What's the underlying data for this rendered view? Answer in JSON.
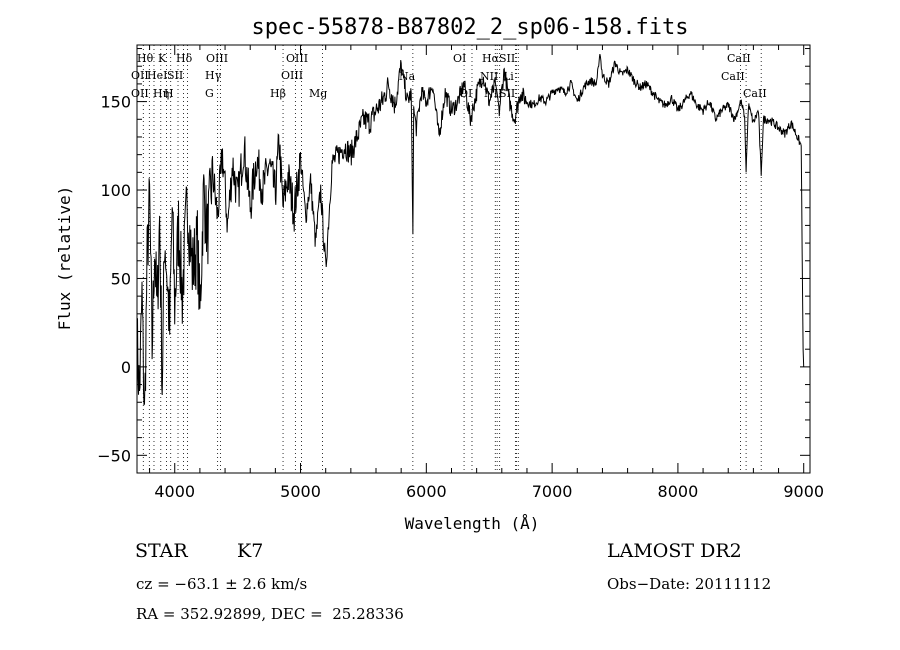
{
  "chart_data": {
    "type": "line",
    "title": "spec-55878-B87802_2_sp06-158.fits",
    "xlabel": "Wavelength (Å)",
    "ylabel": "Flux (relative)",
    "xlim": [
      3700,
      9050
    ],
    "ylim": [
      -60,
      182
    ],
    "xticks": [
      4000,
      5000,
      6000,
      7000,
      8000,
      9000
    ],
    "yticks": [
      -50,
      0,
      50,
      100,
      150
    ],
    "grid": false,
    "series": [
      {
        "color": "#000000",
        "x": [
          3700,
          3720,
          3740,
          3760,
          3780,
          3800,
          3820,
          3840,
          3860,
          3880,
          3900,
          3920,
          3940,
          3960,
          3980,
          4000,
          4030,
          4060,
          4100,
          4140,
          4180,
          4200,
          4230,
          4260,
          4300,
          4340,
          4380,
          4420,
          4460,
          4500,
          4550,
          4600,
          4650,
          4700,
          4750,
          4800,
          4830,
          4860,
          4900,
          4950,
          5000,
          5040,
          5080,
          5120,
          5160,
          5200,
          5250,
          5300,
          5350,
          5400,
          5450,
          5500,
          5550,
          5600,
          5650,
          5700,
          5750,
          5800,
          5850,
          5880,
          5893,
          5900,
          5920,
          5960,
          6000,
          6050,
          6100,
          6150,
          6200,
          6250,
          6300,
          6350,
          6400,
          6450,
          6500,
          6550,
          6563,
          6580,
          6620,
          6660,
          6700,
          6750,
          6800,
          6850,
          6900,
          6950,
          7000,
          7050,
          7100,
          7150,
          7200,
          7250,
          7300,
          7350,
          7370,
          7380,
          7400,
          7450,
          7500,
          7550,
          7600,
          7650,
          7700,
          7750,
          7800,
          7850,
          7900,
          7950,
          8000,
          8050,
          8100,
          8150,
          8200,
          8250,
          8300,
          8350,
          8400,
          8450,
          8500,
          8530,
          8542,
          8560,
          8600,
          8640,
          8662,
          8680,
          8720,
          8760,
          8800,
          8850,
          8900,
          8950,
          8980,
          8995,
          9000
        ],
        "y": [
          15,
          -15,
          40,
          -30,
          60,
          95,
          10,
          70,
          30,
          85,
          -10,
          75,
          50,
          20,
          90,
          35,
          80,
          40,
          95,
          55,
          70,
          30,
          100,
          75,
          110,
          85,
          120,
          80,
          115,
          95,
          125,
          90,
          118,
          100,
          115,
          98,
          128,
          90,
          108,
          88,
          118,
          85,
          105,
          70,
          100,
          55,
          115,
          120,
          125,
          120,
          130,
          140,
          138,
          145,
          150,
          160,
          148,
          170,
          150,
          155,
          75,
          145,
          135,
          155,
          150,
          160,
          130,
          155,
          145,
          150,
          160,
          140,
          155,
          165,
          150,
          160,
          155,
          145,
          168,
          150,
          140,
          155,
          150,
          148,
          152,
          150,
          155,
          158,
          155,
          160,
          150,
          158,
          162,
          160,
          170,
          178,
          165,
          160,
          172,
          165,
          168,
          162,
          158,
          160,
          155,
          150,
          148,
          152,
          145,
          150,
          155,
          148,
          145,
          150,
          140,
          145,
          148,
          140,
          150,
          142,
          110,
          148,
          138,
          145,
          108,
          140,
          140,
          138,
          135,
          132,
          138,
          130,
          125,
          10,
          0
        ]
      }
    ],
    "annotations": [
      "Hθ",
      "K",
      "Hδ",
      "OIII",
      "OII",
      "HeI",
      "SII",
      "Hγ",
      "OII",
      "Hη",
      "H",
      "G",
      "Hβ",
      "OIII",
      "OIII",
      "Mg",
      "Na",
      "OI",
      "OI",
      "Hα",
      "SII",
      "NII",
      "Li",
      "NII",
      "SII",
      "CaII",
      "CaII",
      "CaII"
    ]
  },
  "info": {
    "object_type": "STAR",
    "subclass": "K7",
    "survey": "LAMOST DR2",
    "cz": "cz = −63.1 ± 2.6 km/s",
    "obs_date": "Obs−Date: 20111112",
    "coords": "RA = 352.92899, DEC =  25.28336"
  }
}
